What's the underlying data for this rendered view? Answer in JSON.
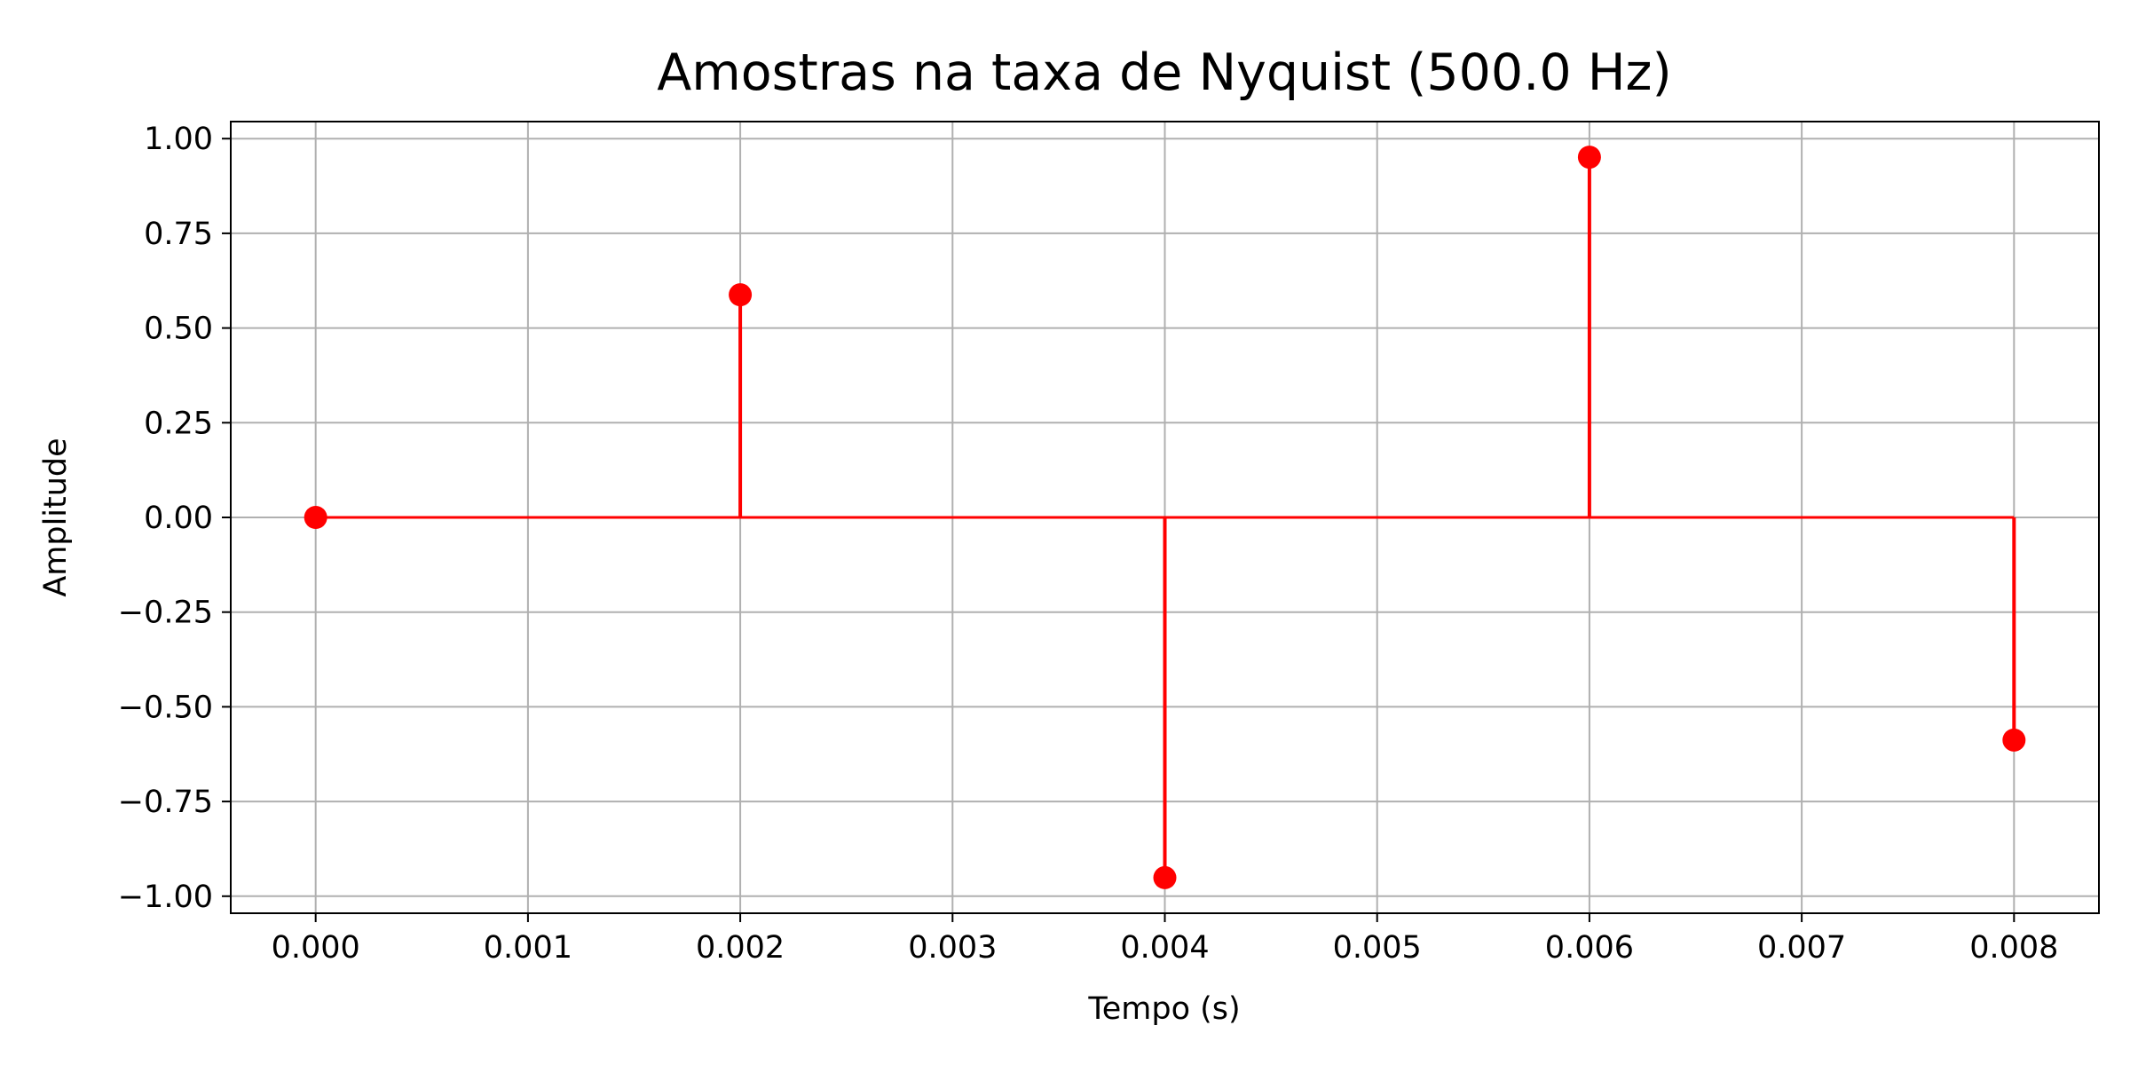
{
  "chart_data": {
    "type": "stem",
    "title": "Amostras na taxa de Nyquist (500.0 Hz)",
    "xlabel": "Tempo (s)",
    "ylabel": "Amplitude",
    "xlim": [
      -0.0004,
      0.0084
    ],
    "ylim": [
      -1.045,
      1.045
    ],
    "x": [
      0.0,
      0.002,
      0.004,
      0.006,
      0.008
    ],
    "y": [
      0.0,
      0.5878,
      -0.9511,
      0.9511,
      -0.5878
    ],
    "baseline": 0.0,
    "x_ticks": [
      0.0,
      0.001,
      0.002,
      0.003,
      0.004,
      0.005,
      0.006,
      0.007,
      0.008
    ],
    "x_tick_labels": [
      "0.000",
      "0.001",
      "0.002",
      "0.003",
      "0.004",
      "0.005",
      "0.006",
      "0.007",
      "0.008"
    ],
    "y_ticks": [
      1.0,
      0.75,
      0.5,
      0.25,
      0.0,
      -0.25,
      -0.5,
      -0.75,
      -1.0
    ],
    "y_tick_labels": [
      "1.00",
      "0.75",
      "0.50",
      "0.25",
      "0.00",
      "−0.25",
      "−0.50",
      "−0.75",
      "−1.00"
    ],
    "grid": true,
    "colors": {
      "stem": "#ff0000",
      "marker": "#ff0000",
      "grid": "#b0b0b0",
      "axes": "#000000"
    }
  }
}
